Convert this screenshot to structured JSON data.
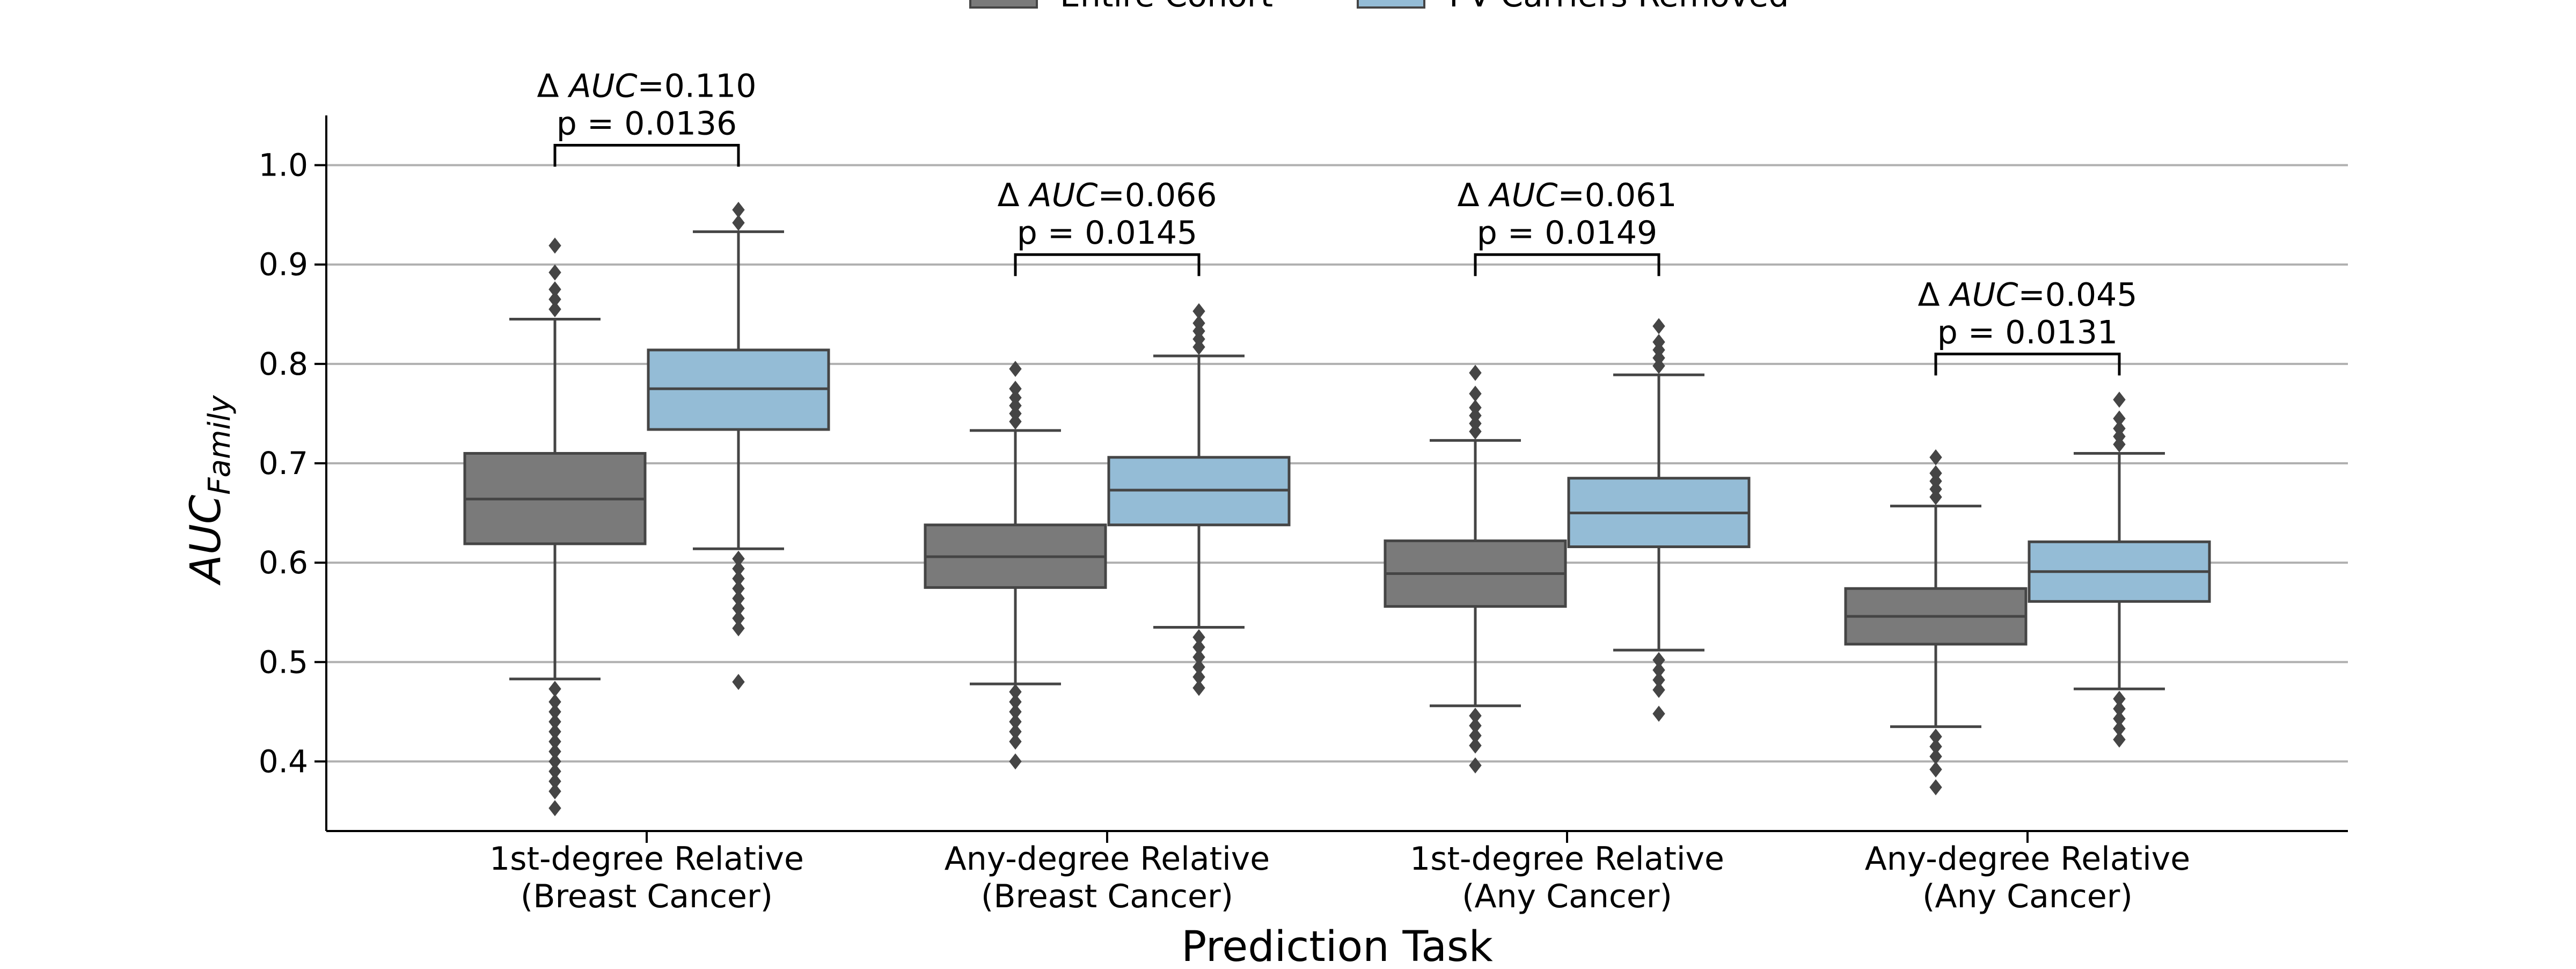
{
  "chart_data": {
    "type": "box",
    "xlabel": "Prediction Task",
    "ylabel": {
      "main": "AUC",
      "subscript": "Family"
    },
    "ylim": [
      0.33,
      1.05
    ],
    "yticks": [
      "0.4",
      "0.5",
      "0.6",
      "0.7",
      "0.8",
      "0.9",
      "1.0"
    ],
    "grid": {
      "y": true,
      "x": false
    },
    "legend": {
      "placement": "top-center",
      "entries": [
        {
          "label": "Entire Cohort",
          "color": "#7a7a7a"
        },
        {
          "label": "PV Carriers Removed",
          "color": "#94bcd6"
        }
      ]
    },
    "categories": [
      {
        "line1": "1st-degree Relative",
        "line2": "(Breast Cancer)"
      },
      {
        "line1": "Any-degree Relative",
        "line2": "(Breast Cancer)"
      },
      {
        "line1": "1st-degree Relative",
        "line2": "(Any Cancer)"
      },
      {
        "line1": "Any-degree Relative",
        "line2": "(Any Cancer)"
      }
    ],
    "series": [
      {
        "name": "Entire Cohort",
        "color": "#7a7a7a",
        "boxes": [
          {
            "q1": 0.619,
            "median": 0.664,
            "q3": 0.71,
            "whisker_low": 0.483,
            "whisker_high": 0.845,
            "outliers_high": [
              0.855,
              0.865,
              0.875,
              0.892,
              0.919
            ],
            "outliers_low": [
              0.473,
              0.46,
              0.45,
              0.44,
              0.43,
              0.42,
              0.41,
              0.4,
              0.39,
              0.38,
              0.37,
              0.353
            ]
          },
          {
            "q1": 0.575,
            "median": 0.606,
            "q3": 0.638,
            "whisker_low": 0.478,
            "whisker_high": 0.733,
            "outliers_high": [
              0.742,
              0.75,
              0.758,
              0.766,
              0.775,
              0.795
            ],
            "outliers_low": [
              0.47,
              0.46,
              0.45,
              0.44,
              0.43,
              0.42,
              0.4
            ]
          },
          {
            "q1": 0.556,
            "median": 0.589,
            "q3": 0.622,
            "whisker_low": 0.456,
            "whisker_high": 0.723,
            "outliers_high": [
              0.732,
              0.74,
              0.748,
              0.756,
              0.77,
              0.791
            ],
            "outliers_low": [
              0.446,
              0.436,
              0.426,
              0.416,
              0.396
            ]
          },
          {
            "q1": 0.518,
            "median": 0.546,
            "q3": 0.574,
            "whisker_low": 0.435,
            "whisker_high": 0.657,
            "outliers_high": [
              0.666,
              0.674,
              0.682,
              0.69,
              0.706
            ],
            "outliers_low": [
              0.425,
              0.415,
              0.405,
              0.392,
              0.374
            ]
          }
        ]
      },
      {
        "name": "PV Carriers Removed",
        "color": "#94bcd6",
        "boxes": [
          {
            "q1": 0.734,
            "median": 0.775,
            "q3": 0.814,
            "whisker_low": 0.614,
            "whisker_high": 0.933,
            "outliers_high": [
              0.942,
              0.955
            ],
            "outliers_low": [
              0.604,
              0.594,
              0.584,
              0.574,
              0.564,
              0.554,
              0.544,
              0.534,
              0.48
            ]
          },
          {
            "q1": 0.638,
            "median": 0.673,
            "q3": 0.706,
            "whisker_low": 0.535,
            "whisker_high": 0.808,
            "outliers_high": [
              0.817,
              0.825,
              0.833,
              0.841,
              0.853
            ],
            "outliers_low": [
              0.525,
              0.515,
              0.505,
              0.495,
              0.485,
              0.474
            ]
          },
          {
            "q1": 0.616,
            "median": 0.65,
            "q3": 0.685,
            "whisker_low": 0.512,
            "whisker_high": 0.789,
            "outliers_high": [
              0.798,
              0.806,
              0.814,
              0.822,
              0.838
            ],
            "outliers_low": [
              0.502,
              0.492,
              0.482,
              0.472,
              0.448
            ]
          },
          {
            "q1": 0.561,
            "median": 0.591,
            "q3": 0.621,
            "whisker_low": 0.473,
            "whisker_high": 0.71,
            "outliers_high": [
              0.719,
              0.727,
              0.735,
              0.745,
              0.764
            ],
            "outliers_low": [
              0.463,
              0.453,
              0.443,
              0.433,
              0.422
            ]
          }
        ]
      }
    ],
    "annotations": [
      {
        "delta_prefix": "Δ ",
        "delta_var": "AUC",
        "delta_value": "=0.110",
        "p_text": "p = 0.0136",
        "bracket_y": 1.02
      },
      {
        "delta_prefix": "Δ ",
        "delta_var": "AUC",
        "delta_value": "=0.066",
        "p_text": "p = 0.0145",
        "bracket_y": 0.91
      },
      {
        "delta_prefix": "Δ ",
        "delta_var": "AUC",
        "delta_value": "=0.061",
        "p_text": "p = 0.0149",
        "bracket_y": 0.91
      },
      {
        "delta_prefix": "Δ ",
        "delta_var": "AUC",
        "delta_value": "=0.045",
        "p_text": "p = 0.0131",
        "bracket_y": 0.81
      }
    ]
  }
}
